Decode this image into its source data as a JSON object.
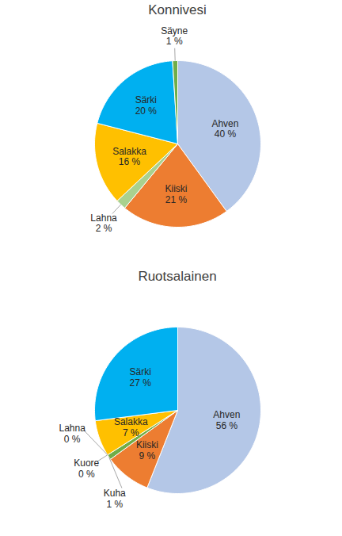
{
  "chart_data": [
    {
      "type": "pie",
      "title": "Konnivesi",
      "categories": [
        "Ahven",
        "Kiiski",
        "Lahna",
        "Salakka",
        "Särki",
        "Säyne"
      ],
      "values": [
        40,
        21,
        2,
        16,
        20,
        1
      ],
      "value_labels": [
        "40 %",
        "21 %",
        "2 %",
        "16 %",
        "20 %",
        "1 %"
      ],
      "colors": [
        "#b4c7e7",
        "#ed7d31",
        "#a9d18e",
        "#ffc000",
        "#00b0f0",
        "#70ad47"
      ],
      "data_labels": true
    },
    {
      "type": "pie",
      "title": "Ruotsalainen",
      "categories": [
        "Ahven",
        "Kiiski",
        "Kuha",
        "Kuore",
        "Lahna",
        "Salakka",
        "Särki"
      ],
      "values": [
        56,
        9,
        1,
        0,
        0,
        7,
        27
      ],
      "value_labels": [
        "56 %",
        "9 %",
        "1 %",
        "0 %",
        "0 %",
        "7 %",
        "27 %"
      ],
      "colors": [
        "#b4c7e7",
        "#ed7d31",
        "#70ad47",
        "#255e91",
        "#a9d18e",
        "#ffc000",
        "#00b0f0"
      ],
      "data_labels": true
    }
  ]
}
